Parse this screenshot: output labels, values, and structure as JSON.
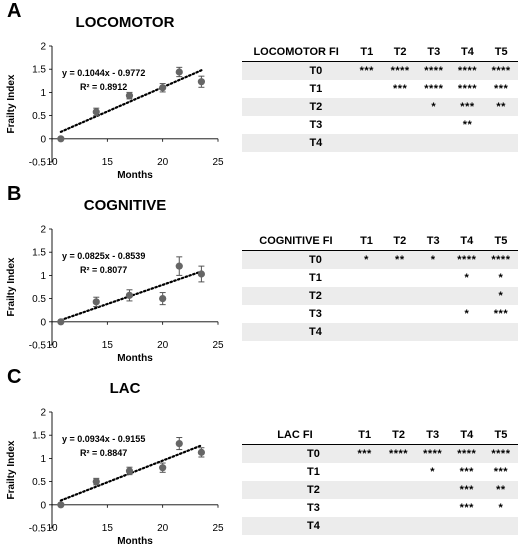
{
  "panels": [
    {
      "letter": "A",
      "title": "LOCOMOTOR",
      "chart_data": {
        "type": "scatter",
        "xlabel": "Months",
        "ylabel": "Frailty Index",
        "xlim": [
          10,
          25
        ],
        "ylim": [
          -0.5,
          2
        ],
        "x_ticks": [
          "10",
          "15",
          "20",
          "25"
        ],
        "y_ticks": [
          "-0.5",
          "0",
          "0.5",
          "1",
          "1.5",
          "2"
        ],
        "points": [
          {
            "x": 10.8,
            "y": 0.0,
            "err": 0.02
          },
          {
            "x": 14.0,
            "y": 0.58,
            "err": 0.08
          },
          {
            "x": 17.0,
            "y": 0.93,
            "err": 0.07
          },
          {
            "x": 20.0,
            "y": 1.1,
            "err": 0.09
          },
          {
            "x": 21.5,
            "y": 1.44,
            "err": 0.1
          },
          {
            "x": 23.5,
            "y": 1.23,
            "err": 0.12
          }
        ],
        "trendline": {
          "slope": 0.1044,
          "intercept": -0.9772,
          "x_range": [
            10.8,
            23.5
          ],
          "style": "dotted"
        },
        "equation": "y = 0.1044x - 0.9772",
        "r2": "R² = 0.8912"
      },
      "table": {
        "header": [
          "LOCOMOTOR FI",
          "T1",
          "T2",
          "T3",
          "T4",
          "T5"
        ],
        "rows": [
          [
            "T0",
            "***",
            "****",
            "****",
            "****",
            "****"
          ],
          [
            "T1",
            "",
            "***",
            "****",
            "****",
            "***"
          ],
          [
            "T2",
            "",
            "",
            "*",
            "***",
            "**"
          ],
          [
            "T3",
            "",
            "",
            "",
            "**",
            ""
          ],
          [
            "T4",
            "",
            "",
            "",
            "",
            ""
          ]
        ]
      }
    },
    {
      "letter": "B",
      "title": "COGNITIVE",
      "chart_data": {
        "type": "scatter",
        "xlabel": "Months",
        "ylabel": "Frailty Index",
        "xlim": [
          10,
          25
        ],
        "ylim": [
          -0.5,
          2
        ],
        "x_ticks": [
          "10",
          "15",
          "20",
          "25"
        ],
        "y_ticks": [
          "-0.5",
          "0",
          "0.5",
          "1",
          "1.5",
          "2"
        ],
        "points": [
          {
            "x": 10.8,
            "y": 0.0,
            "err": 0.02
          },
          {
            "x": 14.0,
            "y": 0.43,
            "err": 0.1
          },
          {
            "x": 17.0,
            "y": 0.57,
            "err": 0.12
          },
          {
            "x": 20.0,
            "y": 0.5,
            "err": 0.13
          },
          {
            "x": 21.5,
            "y": 1.2,
            "err": 0.2
          },
          {
            "x": 23.5,
            "y": 1.03,
            "err": 0.17
          }
        ],
        "trendline": {
          "slope": 0.0825,
          "intercept": -0.8539,
          "x_range": [
            10.8,
            23.5
          ],
          "style": "dotted"
        },
        "equation": "y = 0.0825x - 0.8539",
        "r2": "R² = 0.8077"
      },
      "table": {
        "header": [
          "COGNITIVE FI",
          "T1",
          "T2",
          "T3",
          "T4",
          "T5"
        ],
        "rows": [
          [
            "T0",
            "*",
            "**",
            "*",
            "****",
            "****"
          ],
          [
            "T1",
            "",
            "",
            "",
            "*",
            "*"
          ],
          [
            "T2",
            "",
            "",
            "",
            "",
            "*"
          ],
          [
            "T3",
            "",
            "",
            "",
            "*",
            "***"
          ],
          [
            "T4",
            "",
            "",
            "",
            "",
            ""
          ]
        ]
      }
    },
    {
      "letter": "C",
      "title": "LAC",
      "chart_data": {
        "type": "scatter",
        "xlabel": "Months",
        "ylabel": "Frailty Index",
        "xlim": [
          10,
          25
        ],
        "ylim": [
          -0.5,
          2
        ],
        "x_ticks": [
          "10",
          "15",
          "20",
          "25"
        ],
        "y_ticks": [
          "-0.5",
          "0",
          "0.5",
          "1",
          "1.5",
          "2"
        ],
        "points": [
          {
            "x": 10.8,
            "y": 0.0,
            "err": 0.02
          },
          {
            "x": 14.0,
            "y": 0.5,
            "err": 0.07
          },
          {
            "x": 17.0,
            "y": 0.73,
            "err": 0.08
          },
          {
            "x": 20.0,
            "y": 0.8,
            "err": 0.1
          },
          {
            "x": 21.5,
            "y": 1.32,
            "err": 0.13
          },
          {
            "x": 23.5,
            "y": 1.13,
            "err": 0.1
          }
        ],
        "trendline": {
          "slope": 0.0934,
          "intercept": -0.9155,
          "x_range": [
            10.8,
            23.5
          ],
          "style": "dotted"
        },
        "equation": "y = 0.0934x - 0.9155",
        "r2": "R² = 0.8847"
      },
      "table": {
        "header": [
          "LAC FI",
          "T1",
          "T2",
          "T3",
          "T4",
          "T5"
        ],
        "rows": [
          [
            "T0",
            "***",
            "****",
            "****",
            "****",
            "****"
          ],
          [
            "T1",
            "",
            "",
            "*",
            "***",
            "***"
          ],
          [
            "T2",
            "",
            "",
            "",
            "***",
            "**"
          ],
          [
            "T3",
            "",
            "",
            "",
            "***",
            "*"
          ],
          [
            "T4",
            "",
            "",
            "",
            "",
            ""
          ]
        ]
      }
    }
  ]
}
